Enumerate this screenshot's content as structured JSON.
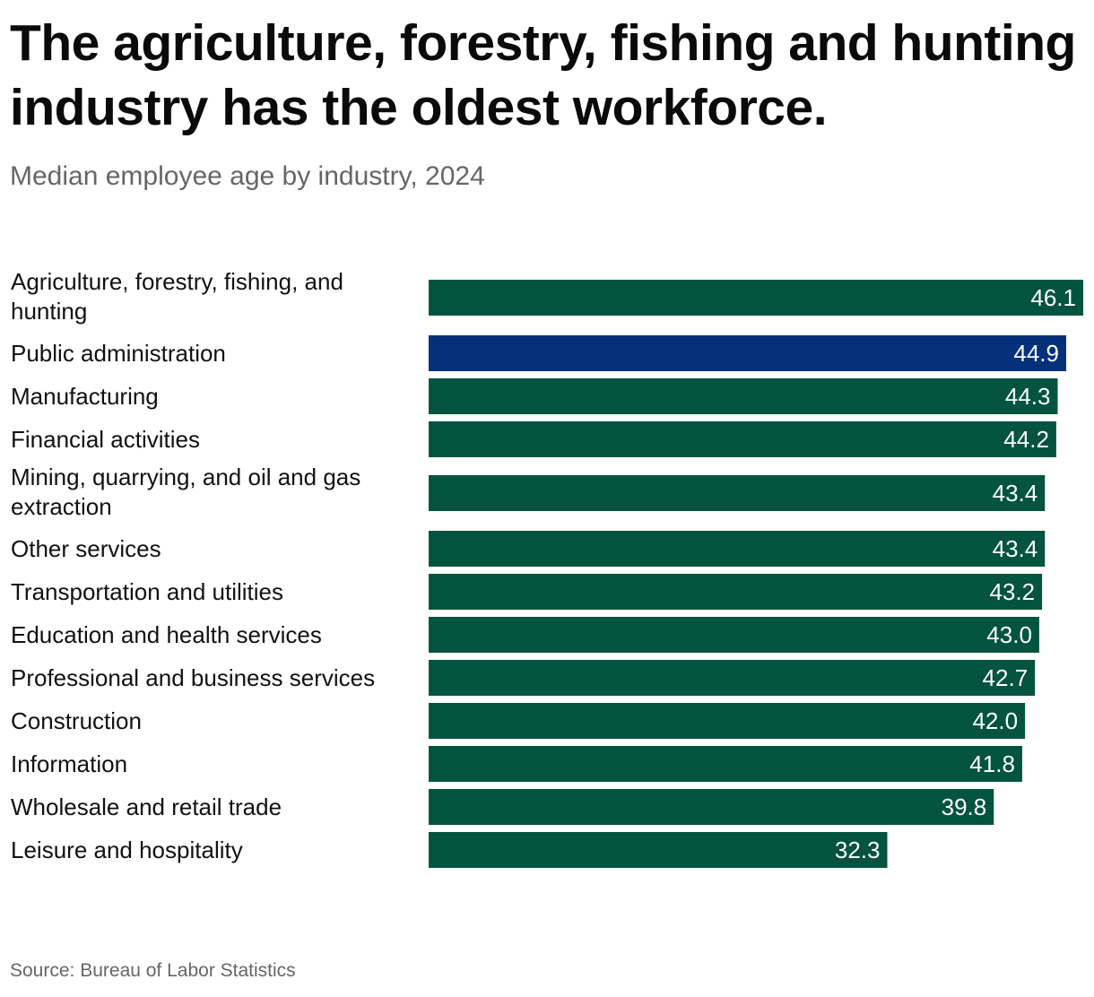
{
  "chart_data": {
    "type": "bar",
    "orientation": "horizontal",
    "title": "The agriculture, forestry, fishing and hunting industry has the oldest workforce.",
    "subtitle": "Median employee age by industry, 2024",
    "source": "Source: Bureau of Labor Statistics",
    "xlabel": "",
    "ylabel": "",
    "xlim": [
      0,
      46.1
    ],
    "grid": false,
    "categories": [
      "Agriculture, forestry, fishing, and hunting",
      "Public administration",
      "Manufacturing",
      "Financial activities",
      "Mining, quarrying, and oil and gas extraction",
      "Other services",
      "Transportation and utilities",
      "Education and health services",
      "Professional and business services",
      "Construction",
      "Information",
      "Wholesale and retail trade",
      "Leisure and hospitality"
    ],
    "category_lines": [
      [
        "Agriculture, forestry, fishing, and",
        "hunting"
      ],
      [
        "Public administration"
      ],
      [
        "Manufacturing"
      ],
      [
        "Financial activities"
      ],
      [
        "Mining, quarrying, and oil and gas",
        "extraction"
      ],
      [
        "Other services"
      ],
      [
        "Transportation and utilities"
      ],
      [
        "Education and health services"
      ],
      [
        "Professional and business services"
      ],
      [
        "Construction"
      ],
      [
        "Information"
      ],
      [
        "Wholesale and retail trade"
      ],
      [
        "Leisure and hospitality"
      ]
    ],
    "values": [
      46.1,
      44.9,
      44.3,
      44.2,
      43.4,
      43.4,
      43.2,
      43.0,
      42.7,
      42.0,
      41.8,
      39.8,
      32.3
    ],
    "value_labels": [
      "46.1",
      "44.9",
      "44.3",
      "44.2",
      "43.4",
      "43.4",
      "43.2",
      "43.0",
      "42.7",
      "42.0",
      "41.8",
      "39.8",
      "32.3"
    ],
    "highlight_index": 1,
    "colors": {
      "default": "#02543f",
      "highlight": "#04317a",
      "value_text": "#ffffff"
    }
  }
}
